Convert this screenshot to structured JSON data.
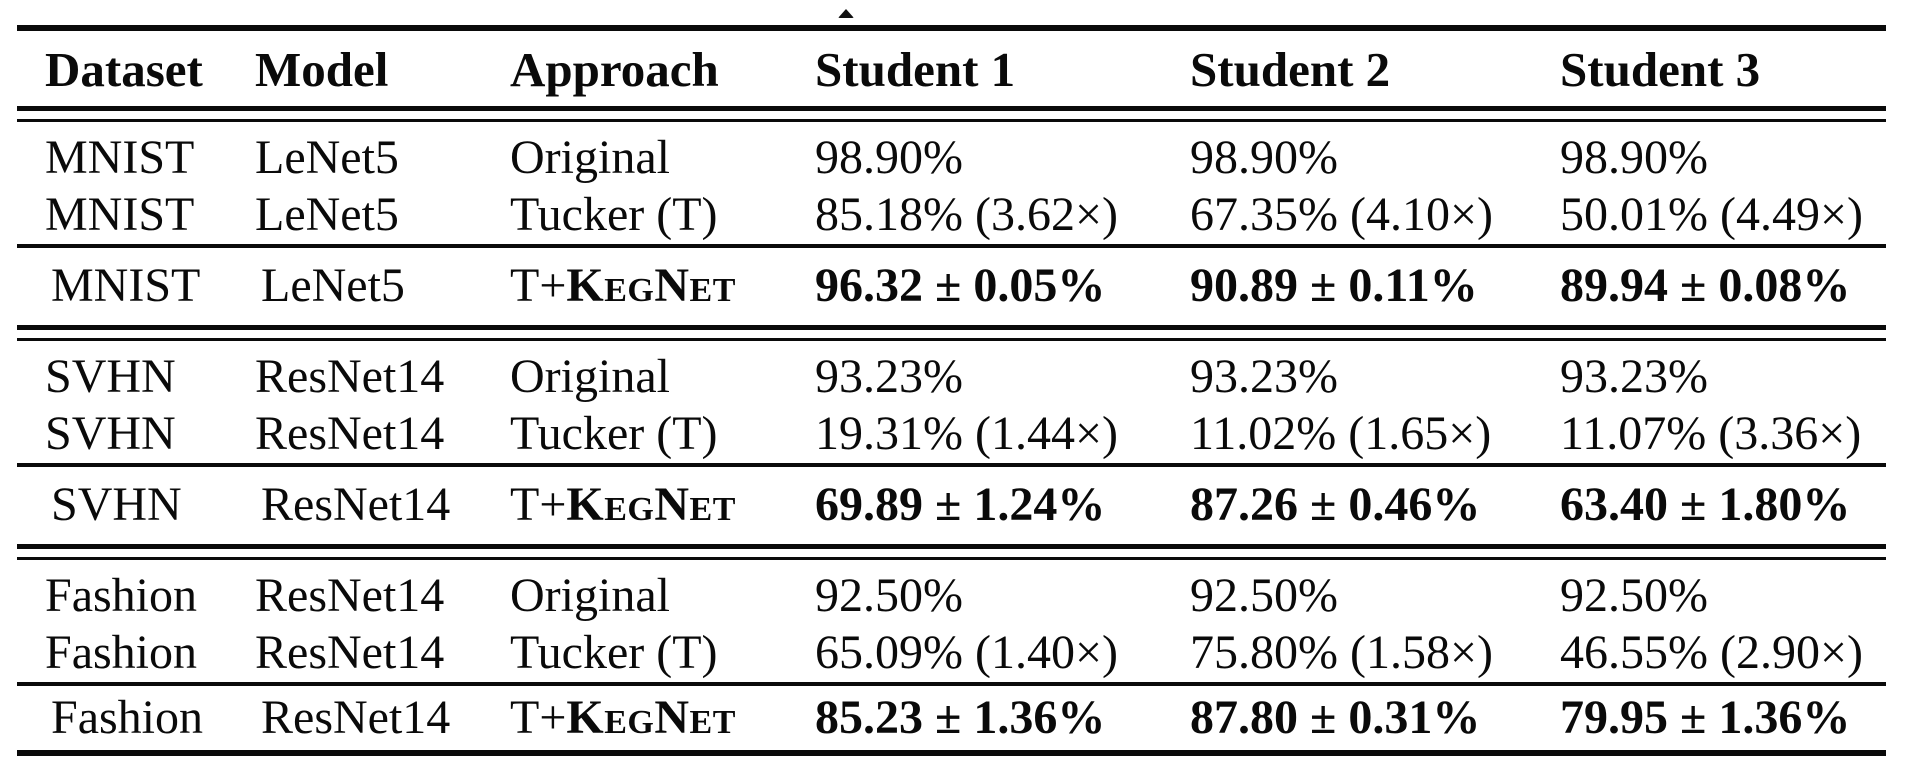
{
  "page": {
    "background": "#ffffff",
    "text_color": "#0a0a0a"
  },
  "artifacts": {
    "top_caption_fragment": "caret-tip"
  },
  "table": {
    "headers": [
      "Dataset",
      "Model",
      "Approach",
      "Student 1",
      "Student 2",
      "Student 3"
    ],
    "rows": [
      {
        "dataset": "MNIST",
        "model": "LeNet5",
        "approach": {
          "prefix": "Original",
          "method": ""
        },
        "student1": "98.90%",
        "student2": "98.90%",
        "student3": "98.90%"
      },
      {
        "dataset": "MNIST",
        "model": "LeNet5",
        "approach": {
          "prefix": "Tucker (T)",
          "method": ""
        },
        "student1": "85.18% (3.62×)",
        "student2": "67.35% (4.10×)",
        "student3": "50.01% (4.49×)"
      },
      {
        "dataset": "MNIST",
        "model": "LeNet5",
        "approach": {
          "prefix": "T+",
          "method": "KegNet"
        },
        "student1": "96.32 ± 0.05%",
        "student2": "90.89 ± 0.11%",
        "student3": "89.94 ± 0.08%"
      },
      {
        "dataset": "SVHN",
        "model": "ResNet14",
        "approach": {
          "prefix": "Original",
          "method": ""
        },
        "student1": "93.23%",
        "student2": "93.23%",
        "student3": "93.23%"
      },
      {
        "dataset": "SVHN",
        "model": "ResNet14",
        "approach": {
          "prefix": "Tucker (T)",
          "method": ""
        },
        "student1": "19.31% (1.44×)",
        "student2": "11.02% (1.65×)",
        "student3": "11.07% (3.36×)"
      },
      {
        "dataset": "SVHN",
        "model": "ResNet14",
        "approach": {
          "prefix": "T+",
          "method": "KegNet"
        },
        "student1": "69.89 ± 1.24%",
        "student2": "87.26 ± 0.46%",
        "student3": "63.40 ± 1.80%"
      },
      {
        "dataset": "Fashion",
        "model": "ResNet14",
        "approach": {
          "prefix": "Original",
          "method": ""
        },
        "student1": "92.50%",
        "student2": "92.50%",
        "student3": "92.50%"
      },
      {
        "dataset": "Fashion",
        "model": "ResNet14",
        "approach": {
          "prefix": "Tucker (T)",
          "method": ""
        },
        "student1": "65.09% (1.40×)",
        "student2": "75.80% (1.58×)",
        "student3": "46.55% (2.90×)"
      },
      {
        "dataset": "Fashion",
        "model": "ResNet14",
        "approach": {
          "prefix": "T+",
          "method": "KegNet"
        },
        "student1": "85.23 ± 1.36%",
        "student2": "87.80 ± 0.31%",
        "student3": "79.95 ± 1.36%"
      }
    ]
  }
}
